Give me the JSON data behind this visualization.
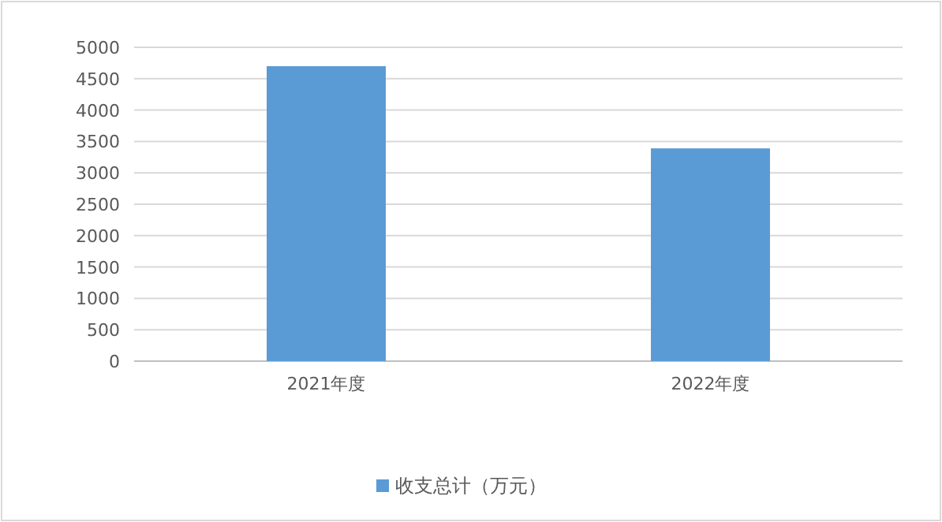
{
  "chart_data": {
    "type": "bar",
    "categories": [
      "2021年度",
      "2022年度"
    ],
    "series": [
      {
        "name": "收支总计（万元）",
        "color": "#5b9bd5",
        "values": [
          4700,
          3390
        ]
      }
    ],
    "ylim": [
      0,
      5000
    ],
    "yticks": [
      0,
      500,
      1000,
      1500,
      2000,
      2500,
      3000,
      3500,
      4000,
      4500,
      5000
    ],
    "grid": "y",
    "legend": "bottom"
  }
}
